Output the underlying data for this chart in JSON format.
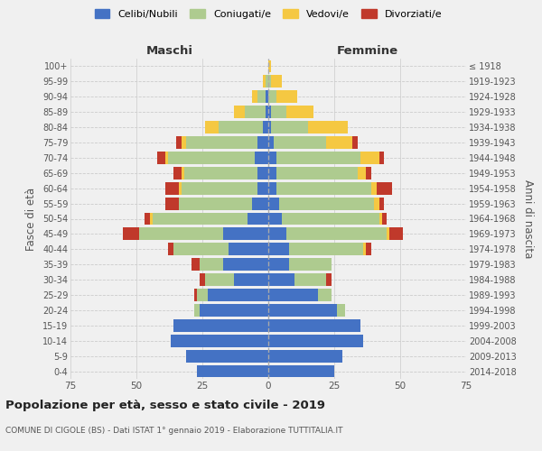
{
  "age_groups": [
    "0-4",
    "5-9",
    "10-14",
    "15-19",
    "20-24",
    "25-29",
    "30-34",
    "35-39",
    "40-44",
    "45-49",
    "50-54",
    "55-59",
    "60-64",
    "65-69",
    "70-74",
    "75-79",
    "80-84",
    "85-89",
    "90-94",
    "95-99",
    "100+"
  ],
  "birth_years": [
    "2014-2018",
    "2009-2013",
    "2004-2008",
    "1999-2003",
    "1994-1998",
    "1989-1993",
    "1984-1988",
    "1979-1983",
    "1974-1978",
    "1969-1973",
    "1964-1968",
    "1959-1963",
    "1954-1958",
    "1949-1953",
    "1944-1948",
    "1939-1943",
    "1934-1938",
    "1929-1933",
    "1924-1928",
    "1919-1923",
    "≤ 1918"
  ],
  "males": {
    "celibi": [
      27,
      31,
      37,
      36,
      26,
      23,
      13,
      17,
      15,
      17,
      8,
      6,
      4,
      4,
      5,
      4,
      2,
      1,
      1,
      0,
      0
    ],
    "coniugati": [
      0,
      0,
      0,
      0,
      2,
      4,
      11,
      9,
      21,
      32,
      36,
      28,
      29,
      28,
      33,
      27,
      17,
      8,
      3,
      1,
      0
    ],
    "vedovi": [
      0,
      0,
      0,
      0,
      0,
      0,
      0,
      0,
      0,
      0,
      1,
      0,
      1,
      1,
      1,
      2,
      5,
      4,
      2,
      1,
      0
    ],
    "divorziati": [
      0,
      0,
      0,
      0,
      0,
      1,
      2,
      3,
      2,
      6,
      2,
      5,
      5,
      3,
      3,
      2,
      0,
      0,
      0,
      0,
      0
    ]
  },
  "females": {
    "nubili": [
      25,
      28,
      36,
      35,
      26,
      19,
      10,
      8,
      8,
      7,
      5,
      4,
      3,
      3,
      3,
      2,
      1,
      1,
      0,
      0,
      0
    ],
    "coniugate": [
      0,
      0,
      0,
      0,
      3,
      5,
      12,
      16,
      28,
      38,
      37,
      36,
      36,
      31,
      32,
      20,
      14,
      6,
      3,
      1,
      0
    ],
    "vedove": [
      0,
      0,
      0,
      0,
      0,
      0,
      0,
      0,
      1,
      1,
      1,
      2,
      2,
      3,
      7,
      10,
      15,
      10,
      8,
      4,
      1
    ],
    "divorziate": [
      0,
      0,
      0,
      0,
      0,
      0,
      2,
      0,
      2,
      5,
      2,
      2,
      6,
      2,
      2,
      2,
      0,
      0,
      0,
      0,
      0
    ]
  },
  "colors": {
    "celibi": "#4472C4",
    "coniugati": "#AECB8F",
    "vedovi": "#F5C842",
    "divorziati": "#C0392B"
  },
  "xlim": 75,
  "title": "Popolazione per età, sesso e stato civile - 2019",
  "subtitle": "COMUNE DI CIGOLE (BS) - Dati ISTAT 1° gennaio 2019 - Elaborazione TUTTITALIA.IT",
  "ylabel_left": "Fasce di età",
  "ylabel_right": "Anni di nascita",
  "xlabel_left": "Maschi",
  "xlabel_right": "Femmine",
  "legend_labels": [
    "Celibi/Nubili",
    "Coniugati/e",
    "Vedovi/e",
    "Divorziati/e"
  ],
  "bg_color": "#f0f0f0"
}
